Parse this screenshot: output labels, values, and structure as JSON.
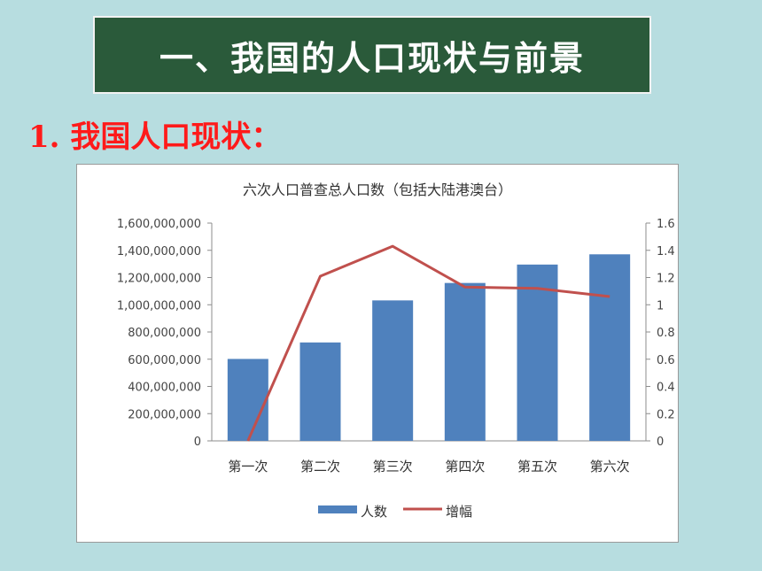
{
  "header": {
    "title": "一、我国的人口现状与前景"
  },
  "section": {
    "subtitle": "1. 我国人口现状："
  },
  "chart_data": {
    "type": "bar",
    "title": "六次人口普查总人口数（包括大陆港澳台）",
    "categories": [
      "第一次",
      "第二次",
      "第三次",
      "第四次",
      "第五次",
      "第六次"
    ],
    "series": [
      {
        "name": "人数",
        "type": "bar",
        "axis": "left",
        "color": "#4f81bd",
        "values": [
          601938035,
          723070269,
          1031882511,
          1160044618,
          1295330000,
          1370536875
        ]
      },
      {
        "name": "增幅",
        "type": "line",
        "axis": "right",
        "color": "#c0504d",
        "values": [
          0,
          1.21,
          1.43,
          1.13,
          1.12,
          1.06
        ]
      }
    ],
    "y_left": {
      "min": 0,
      "max": 1600000000,
      "ticks": [
        "0",
        "200,000,000",
        "400,000,000",
        "600,000,000",
        "800,000,000",
        "1,000,000,000",
        "1,200,000,000",
        "1,400,000,000",
        "1,600,000,000"
      ]
    },
    "y_right": {
      "min": 0,
      "max": 1.6,
      "ticks": [
        "0",
        "0.2",
        "0.4",
        "0.6",
        "0.8",
        "1",
        "1.2",
        "1.4",
        "1.6"
      ]
    },
    "legend_position": "bottom",
    "grid": false
  }
}
